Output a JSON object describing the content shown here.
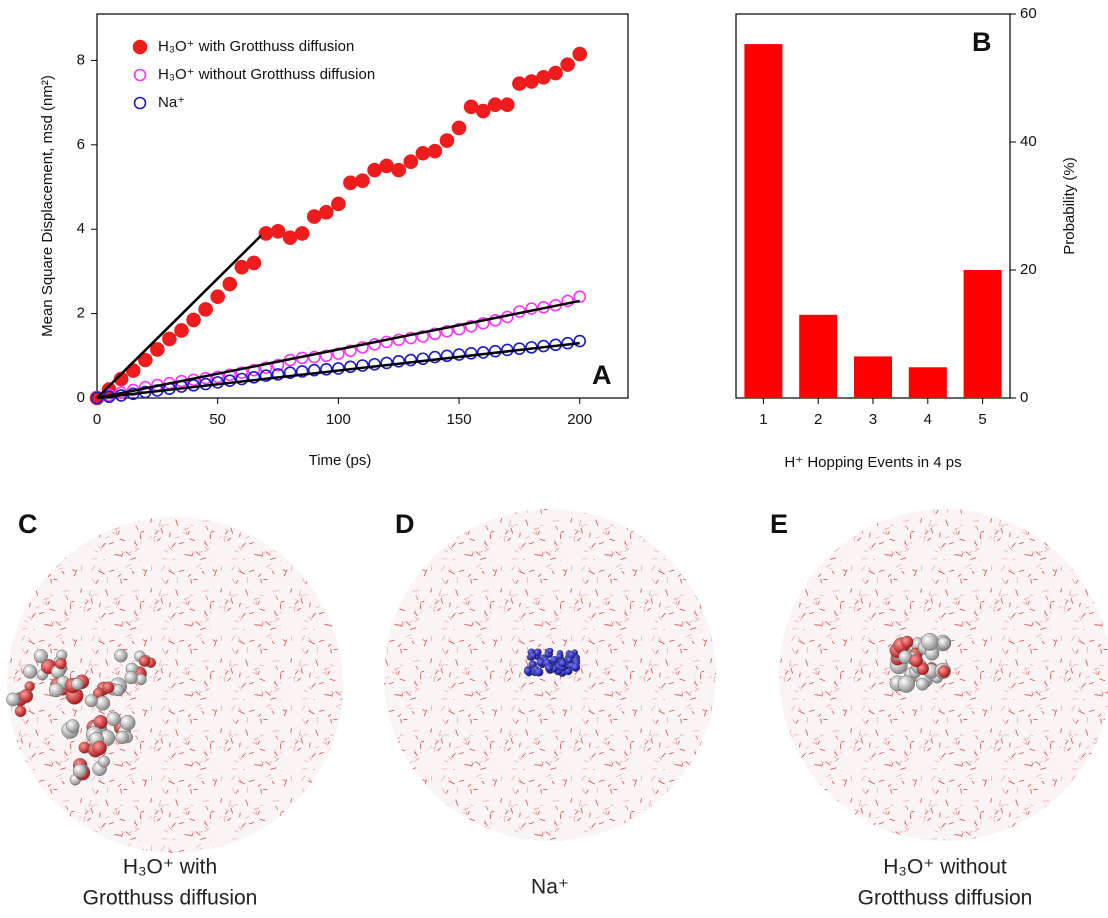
{
  "chart_data": [
    {
      "type": "scatter",
      "panel": "A",
      "xlabel": "Time (ps)",
      "ylabel": "Mean Square Displacement, msd (nm²)",
      "xlim": [
        0,
        220
      ],
      "ylim": [
        0,
        9.1
      ],
      "xticks": [
        0,
        50,
        100,
        150,
        200
      ],
      "yticks": [
        0,
        2,
        4,
        6,
        8
      ],
      "x": [
        0,
        5,
        10,
        15,
        20,
        25,
        30,
        35,
        40,
        45,
        50,
        55,
        60,
        65,
        70,
        75,
        80,
        85,
        90,
        95,
        100,
        105,
        110,
        115,
        120,
        125,
        130,
        135,
        140,
        145,
        150,
        155,
        160,
        165,
        170,
        175,
        180,
        185,
        190,
        195,
        200
      ],
      "series": [
        {
          "name": "H₃O⁺ with Grotthuss diffusion",
          "color": "#ee1c1c",
          "marker": "filled",
          "values": [
            0,
            0.2,
            0.45,
            0.65,
            0.9,
            1.15,
            1.4,
            1.6,
            1.85,
            2.1,
            2.4,
            2.7,
            3.1,
            3.2,
            3.9,
            3.95,
            3.8,
            3.9,
            4.3,
            4.4,
            4.6,
            5.1,
            5.15,
            5.4,
            5.5,
            5.4,
            5.6,
            5.8,
            5.85,
            6.1,
            6.4,
            6.9,
            6.8,
            6.95,
            6.95,
            7.45,
            7.5,
            7.6,
            7.7,
            7.9,
            8.15
          ]
        },
        {
          "name": "H₃O⁺ without Grotthuss diffusion",
          "color": "#ff33ff",
          "marker": "open",
          "values": [
            0,
            0.07,
            0.13,
            0.19,
            0.26,
            0.31,
            0.35,
            0.4,
            0.43,
            0.47,
            0.5,
            0.55,
            0.6,
            0.66,
            0.72,
            0.78,
            0.9,
            0.95,
            0.97,
            1.0,
            1.05,
            1.12,
            1.2,
            1.27,
            1.33,
            1.38,
            1.42,
            1.46,
            1.52,
            1.58,
            1.63,
            1.7,
            1.77,
            1.84,
            1.92,
            2.05,
            2.12,
            2.15,
            2.2,
            2.3,
            2.4
          ]
        },
        {
          "name": "Na⁺",
          "color": "#1a1acc",
          "marker": "open",
          "values": [
            0,
            0.03,
            0.06,
            0.1,
            0.14,
            0.18,
            0.22,
            0.27,
            0.3,
            0.33,
            0.37,
            0.41,
            0.45,
            0.49,
            0.53,
            0.56,
            0.6,
            0.63,
            0.66,
            0.68,
            0.7,
            0.74,
            0.77,
            0.8,
            0.83,
            0.87,
            0.9,
            0.93,
            0.97,
            1.0,
            1.03,
            1.06,
            1.08,
            1.11,
            1.14,
            1.17,
            1.2,
            1.23,
            1.26,
            1.3,
            1.35
          ]
        }
      ],
      "fit_lines": [
        {
          "color": "#000000",
          "x": [
            0,
            68
          ],
          "values": [
            0,
            3.85
          ]
        },
        {
          "color": "#000000",
          "x": [
            0,
            200
          ],
          "values": [
            0,
            2.3
          ]
        },
        {
          "color": "#000000",
          "x": [
            0,
            200
          ],
          "values": [
            0,
            1.3
          ]
        }
      ]
    },
    {
      "type": "bar",
      "panel": "B",
      "xlabel": "H⁺ Hopping Events in 4 ps",
      "ylabel": "Probability (%)",
      "categories": [
        "1",
        "2",
        "3",
        "4",
        "5"
      ],
      "values": [
        55.3,
        13,
        6.5,
        4.8,
        20
      ],
      "color": "#ff0000",
      "ylim": [
        0,
        60
      ],
      "yticks": [
        0,
        20,
        40,
        60
      ]
    }
  ],
  "panels": [
    {
      "label": "C",
      "caption": [
        "H₃O⁺ with",
        "Grotthuss diffusion"
      ]
    },
    {
      "label": "D",
      "caption": [
        "Na⁺"
      ]
    },
    {
      "label": "E",
      "caption": [
        "H₃O⁺ without",
        "Grotthuss diffusion"
      ]
    }
  ]
}
